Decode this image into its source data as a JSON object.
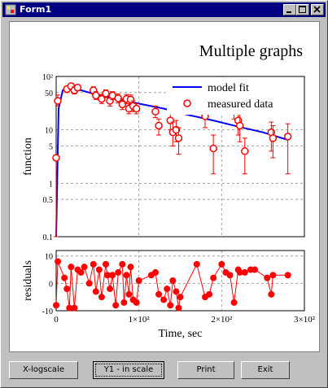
{
  "window": {
    "title": "Form1"
  },
  "buttons": {
    "xlog": "X-logscale",
    "y1": "Y1 - in scale",
    "print": "Print",
    "exit": "Exit"
  },
  "colors": {
    "model": "#0000ff",
    "data": "#ff0000",
    "residual": "#ff0000",
    "grid": "#a0a0a0"
  },
  "chart_data": [
    {
      "type": "scatter",
      "title": "Multiple graphs",
      "ylabel": "function",
      "xlabel": "",
      "yscale": "log",
      "xlim": [
        0,
        300
      ],
      "ylim": [
        0.1,
        100
      ],
      "y_ticks": [
        {
          "v": 0.1,
          "label": "0.1"
        },
        {
          "v": 0.5,
          "label": "0.5"
        },
        {
          "v": 1,
          "label": "1"
        },
        {
          "v": 5,
          "label": "5"
        },
        {
          "v": 10,
          "label": "10"
        },
        {
          "v": 50,
          "label": "50"
        },
        {
          "v": 100,
          "label": "10²"
        }
      ],
      "grid": true,
      "legend": {
        "position": "top-right",
        "entries": [
          "model fit",
          "measured data"
        ]
      },
      "series": [
        {
          "name": "model fit",
          "kind": "line",
          "x": [
            0,
            3,
            8,
            15,
            25,
            40,
            60,
            80,
            100,
            130,
            160,
            190,
            220,
            250,
            280
          ],
          "y": [
            0.1,
            25,
            55,
            63,
            58,
            50,
            42,
            36,
            31,
            25,
            19,
            15,
            11.5,
            9,
            6.5
          ]
        },
        {
          "name": "measured data",
          "kind": "scatter",
          "points": [
            {
              "x": 0,
              "y": 3,
              "lo": 0.1,
              "hi": 3
            },
            {
              "x": 2,
              "y": 35,
              "lo": 28,
              "hi": 45
            },
            {
              "x": 13,
              "y": 58,
              "lo": 50,
              "hi": 66
            },
            {
              "x": 18,
              "y": 66,
              "lo": 58,
              "hi": 74
            },
            {
              "x": 22,
              "y": 55,
              "lo": 47,
              "hi": 64
            },
            {
              "x": 26,
              "y": 62,
              "lo": 54,
              "hi": 70
            },
            {
              "x": 45,
              "y": 55,
              "lo": 47,
              "hi": 64
            },
            {
              "x": 48,
              "y": 44,
              "lo": 37,
              "hi": 52
            },
            {
              "x": 55,
              "y": 38,
              "lo": 31,
              "hi": 46
            },
            {
              "x": 60,
              "y": 48,
              "lo": 40,
              "hi": 56
            },
            {
              "x": 65,
              "y": 35,
              "lo": 28,
              "hi": 44
            },
            {
              "x": 68,
              "y": 44,
              "lo": 37,
              "hi": 52
            },
            {
              "x": 75,
              "y": 39,
              "lo": 32,
              "hi": 47
            },
            {
              "x": 80,
              "y": 30,
              "lo": 24,
              "hi": 38
            },
            {
              "x": 85,
              "y": 38,
              "lo": 31,
              "hi": 46
            },
            {
              "x": 88,
              "y": 25,
              "lo": 20,
              "hi": 31
            },
            {
              "x": 90,
              "y": 37,
              "lo": 30,
              "hi": 45
            },
            {
              "x": 93,
              "y": 28,
              "lo": 22,
              "hi": 35
            },
            {
              "x": 97,
              "y": 25,
              "lo": 20,
              "hi": 31
            },
            {
              "x": 120,
              "y": 22,
              "lo": 17,
              "hi": 28
            },
            {
              "x": 124,
              "y": 12,
              "lo": 8,
              "hi": 16
            },
            {
              "x": 138,
              "y": 15,
              "lo": 10,
              "hi": 20
            },
            {
              "x": 141,
              "y": 9,
              "lo": 5,
              "hi": 14
            },
            {
              "x": 145,
              "y": 10,
              "lo": 6,
              "hi": 15
            },
            {
              "x": 148,
              "y": 7,
              "lo": 3.5,
              "hi": 11
            },
            {
              "x": 180,
              "y": 18,
              "lo": 11,
              "hi": 26
            },
            {
              "x": 190,
              "y": 4.5,
              "lo": 1.5,
              "hi": 8
            },
            {
              "x": 215,
              "y": 25,
              "lo": 16,
              "hi": 34
            },
            {
              "x": 220,
              "y": 15,
              "lo": 8,
              "hi": 22
            },
            {
              "x": 222,
              "y": 12,
              "lo": 6,
              "hi": 20
            },
            {
              "x": 228,
              "y": 4,
              "lo": 1.5,
              "hi": 7
            },
            {
              "x": 260,
              "y": 9,
              "lo": 4,
              "hi": 14
            },
            {
              "x": 262,
              "y": 7,
              "lo": 3,
              "hi": 12
            },
            {
              "x": 280,
              "y": 7.5,
              "lo": 1.5,
              "hi": 13
            }
          ]
        }
      ]
    },
    {
      "type": "line",
      "ylabel": "residuals",
      "xlabel": "Time, sec",
      "xlim": [
        0,
        300
      ],
      "ylim": [
        -10,
        12
      ],
      "y_ticks": [
        {
          "v": -10,
          "label": "-10"
        },
        {
          "v": 0,
          "label": "0"
        },
        {
          "v": 10,
          "label": "10"
        }
      ],
      "x_ticks": [
        {
          "v": 0,
          "label": "0"
        },
        {
          "v": 100,
          "label": "1×10²"
        },
        {
          "v": 200,
          "label": "2×10²"
        },
        {
          "v": 300,
          "label": "3×10²"
        }
      ],
      "grid": true,
      "series": [
        {
          "name": "residuals",
          "x": [
            0,
            2,
            10,
            13,
            16,
            18,
            22,
            26,
            30,
            34,
            40,
            45,
            48,
            52,
            55,
            60,
            62,
            65,
            68,
            72,
            75,
            80,
            82,
            85,
            88,
            90,
            93,
            97,
            100,
            115,
            120,
            124,
            130,
            134,
            138,
            141,
            145,
            148,
            150,
            170,
            180,
            185,
            190,
            200,
            205,
            210,
            215,
            220,
            222,
            228,
            235,
            240,
            255,
            260,
            262,
            280
          ],
          "y": [
            -8,
            8,
            2,
            -2,
            -9,
            6,
            -9,
            5,
            4,
            6,
            0,
            7,
            -3,
            5,
            -5,
            7,
            3,
            -2,
            3,
            -8,
            4,
            7,
            -7,
            3,
            -4,
            6,
            -6,
            -7,
            1,
            3,
            4,
            -4,
            -6,
            -2,
            -8,
            1,
            -3,
            -9,
            -5,
            7,
            -5,
            -4,
            2,
            7,
            4,
            3,
            -7,
            5,
            4,
            4,
            5,
            5,
            2,
            -4,
            3,
            3
          ]
        }
      ]
    }
  ]
}
